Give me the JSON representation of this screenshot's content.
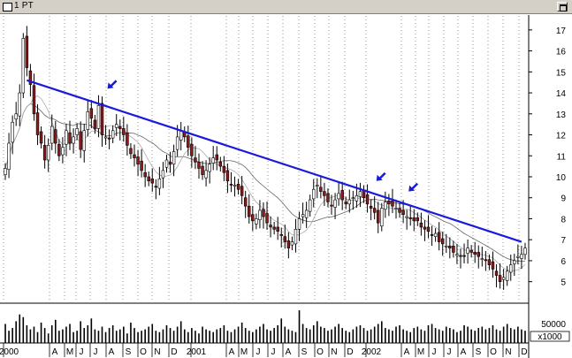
{
  "window": {
    "title": "1 PT"
  },
  "chart_data": {
    "type": "candlestick",
    "yticks": [
      5,
      6,
      7,
      8,
      9,
      10,
      11,
      12,
      13,
      14,
      15,
      16,
      17
    ],
    "ylim": [
      4.1,
      17.5
    ],
    "xlabels": [
      "2000",
      "A",
      "M",
      "J",
      "J",
      "A",
      "S",
      "O",
      "N",
      "D",
      "2001",
      "A",
      "M",
      "J",
      "J",
      "A",
      "S",
      "O",
      "N",
      "D",
      "2002",
      "A",
      "M",
      "J",
      "J",
      "A",
      "S",
      "O",
      "N",
      "D"
    ],
    "volume_axis": {
      "ticks": [
        "50000"
      ],
      "unit": "x1000"
    },
    "trendline": {
      "start": {
        "week": 6,
        "price": 14.6
      },
      "end": {
        "week": 144,
        "price": 6.9
      }
    },
    "arrows": [
      {
        "week": 28,
        "price": 14.2
      },
      {
        "week": 103,
        "price": 9.8
      },
      {
        "week": 112,
        "price": 9.3
      }
    ],
    "close_series": [
      10.4,
      11.6,
      12.6,
      13.0,
      14.0,
      16.6,
      15.2,
      14.4,
      13.0,
      12.0,
      11.6,
      10.8,
      11.5,
      12.4,
      11.6,
      11.0,
      11.4,
      12.2,
      11.6,
      11.9,
      12.3,
      11.3,
      12.2,
      13.1,
      12.8,
      12.3,
      13.4,
      12.0,
      11.9,
      11.8,
      12.2,
      12.5,
      12.3,
      12.0,
      11.5,
      11.1,
      10.9,
      10.6,
      10.3,
      10.0,
      9.8,
      9.7,
      9.5,
      9.9,
      10.3,
      10.8,
      10.6,
      11.2,
      11.9,
      12.2,
      11.9,
      11.4,
      11.0,
      10.7,
      10.4,
      10.1,
      10.3,
      10.6,
      10.9,
      10.8,
      10.5,
      10.2,
      9.8,
      9.6,
      9.6,
      9.4,
      9.1,
      8.6,
      8.1,
      7.9,
      8.0,
      8.4,
      8.1,
      7.8,
      7.6,
      7.5,
      7.4,
      7.2,
      6.9,
      6.6,
      6.9,
      7.5,
      8.0,
      8.2,
      8.4,
      8.9,
      9.4,
      9.6,
      9.3,
      9.1,
      8.8,
      8.6,
      8.9,
      9.2,
      8.9,
      8.7,
      8.9,
      9.0,
      9.1,
      9.3,
      9.0,
      8.7,
      8.5,
      8.3,
      7.8,
      8.5,
      8.8,
      8.7,
      8.6,
      8.5,
      8.3,
      8.2,
      8.1,
      8.0,
      7.9,
      7.9,
      7.6,
      7.5,
      7.4,
      7.2,
      7.3,
      6.9,
      6.8,
      6.7,
      6.6,
      6.4,
      6.3,
      6.2,
      6.2,
      6.6,
      6.4,
      6.3,
      6.2,
      6.1,
      6.0,
      5.8,
      5.6,
      5.3,
      5.0,
      5.2,
      5.5,
      5.8,
      6.0,
      6.2,
      6.3,
      6.6
    ],
    "volume_series": [
      14,
      9,
      11,
      16,
      21,
      19,
      13,
      10,
      12,
      8,
      15,
      11,
      7,
      13,
      17,
      9,
      10,
      12,
      14,
      8,
      9,
      16,
      11,
      13,
      18,
      10,
      9,
      12,
      8,
      11,
      13,
      9,
      10,
      12,
      7,
      15,
      11,
      8,
      9,
      10,
      12,
      14,
      9,
      8,
      10,
      13,
      11,
      9,
      12,
      16,
      10,
      8,
      11,
      9,
      7,
      12,
      10,
      9,
      8,
      10,
      11,
      13,
      9,
      8,
      10,
      12,
      15,
      11,
      9,
      8,
      10,
      12,
      14,
      10,
      9,
      11,
      13,
      18,
      12,
      10,
      9,
      8,
      24,
      14,
      11,
      10,
      13,
      16,
      12,
      11,
      9,
      10,
      12,
      14,
      11,
      9,
      8,
      10,
      12,
      13,
      11,
      9,
      10,
      12,
      14,
      16,
      11,
      10,
      9,
      12,
      13,
      10,
      9,
      8,
      11,
      12,
      10,
      9,
      13,
      14,
      11,
      10,
      9,
      12,
      11,
      10,
      8,
      9,
      13,
      12,
      10,
      9,
      11,
      12,
      10,
      11,
      13,
      10,
      9,
      12,
      14,
      11,
      10,
      12,
      10,
      9
    ]
  }
}
